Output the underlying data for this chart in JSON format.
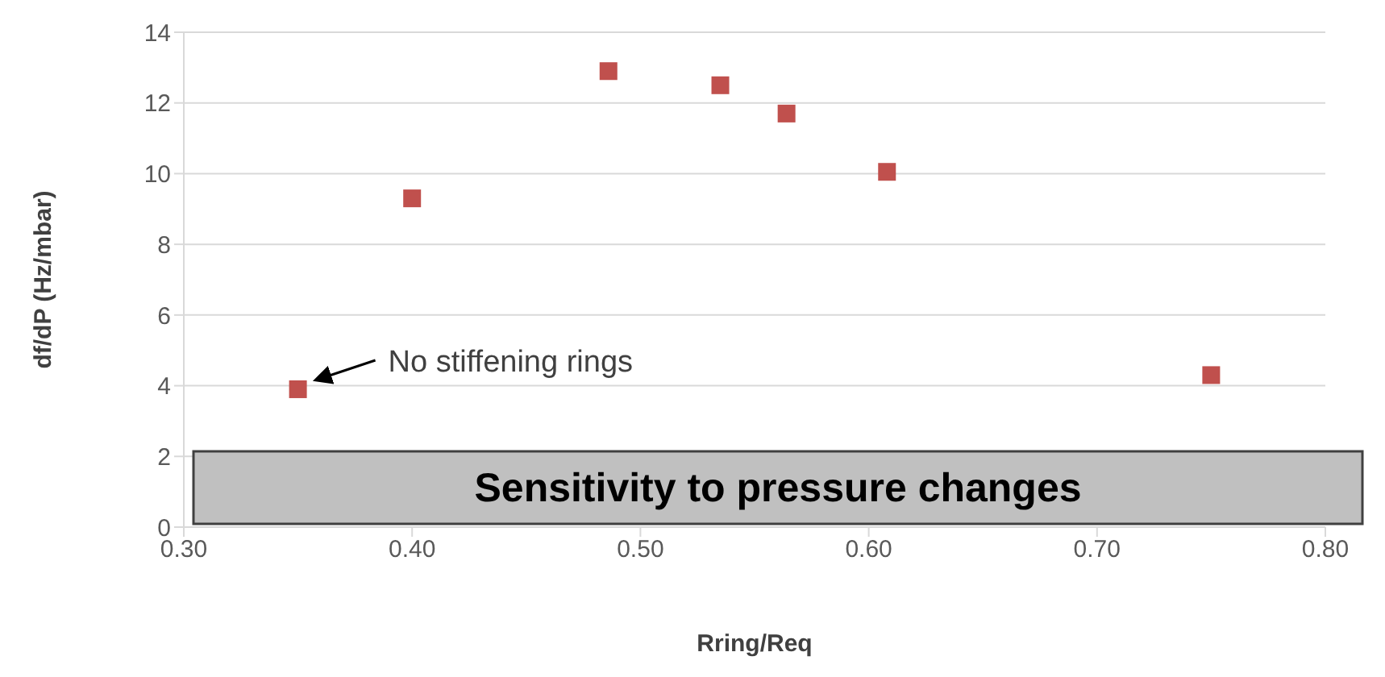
{
  "chart_data": {
    "type": "scatter",
    "xlabel": "Rring/Req",
    "ylabel": "df/dP (Hz/mbar)",
    "x": [
      0.35,
      0.4,
      0.486,
      0.535,
      0.564,
      0.608,
      0.75
    ],
    "series": [
      {
        "color": "#c0504d",
        "values": [
          3.9,
          9.3,
          12.9,
          12.5,
          11.7,
          10.05,
          4.3
        ]
      }
    ],
    "xlim": [
      0.3,
      0.8
    ],
    "xticks": [
      {
        "value": 0.3,
        "label": "0.30"
      },
      {
        "value": 0.4,
        "label": "0.40"
      },
      {
        "value": 0.5,
        "label": "0.50"
      },
      {
        "value": 0.6,
        "label": "0.60"
      },
      {
        "value": 0.7,
        "label": "0.70"
      },
      {
        "value": 0.8,
        "label": "0.80"
      }
    ],
    "ylim": [
      0,
      14
    ],
    "yticks": [
      0,
      2,
      4,
      6,
      8,
      10,
      12,
      14
    ],
    "grid": "y",
    "marker": "square",
    "legend": false,
    "annotations": [
      {
        "text": "No stiffening rings",
        "x": 0.35,
        "y": 3.9
      },
      "Sensitivity to pressure changes"
    ]
  }
}
